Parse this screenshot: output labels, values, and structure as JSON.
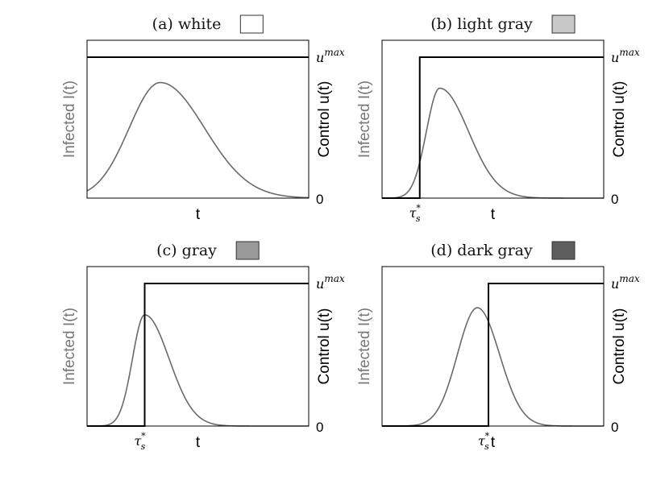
{
  "chart_data": [
    {
      "type": "line",
      "panel": "a",
      "title": "(a) white",
      "swatch_color": "#ffffff",
      "xlabel": "t",
      "ylabel_left": "Infected I(t)",
      "ylabel_right": "Control u(t)",
      "right_ticks": {
        "zero": "0",
        "max_base": "u",
        "max_sup": "max"
      },
      "switch_time_label": null,
      "switch_time": null,
      "peak_time": 0.33,
      "peak_value": 0.82,
      "rise_width": 0.14,
      "decay_width": 0.2,
      "xlim": [
        0,
        1
      ],
      "ylim": [
        0,
        1
      ]
    },
    {
      "type": "line",
      "panel": "b",
      "title": "(b) light gray",
      "swatch_color": "#c8c8c8",
      "xlabel": "t",
      "ylabel_left": "Infected I(t)",
      "ylabel_right": "Control u(t)",
      "right_ticks": {
        "zero": "0",
        "max_base": "u",
        "max_sup": "max"
      },
      "switch_time_label": {
        "base": "τ",
        "sub": "s",
        "sup": "*"
      },
      "switch_time": 0.17,
      "peak_time": 0.26,
      "peak_value": 0.78,
      "rise_width": 0.06,
      "decay_width": 0.13,
      "xlim": [
        0,
        1
      ],
      "ylim": [
        0,
        1
      ]
    },
    {
      "type": "line",
      "panel": "c",
      "title": "(c) gray",
      "swatch_color": "#9a9a9a",
      "xlabel": "t",
      "ylabel_left": "Infected I(t)",
      "ylabel_right": "Control u(t)",
      "right_ticks": {
        "zero": "0",
        "max_base": "u",
        "max_sup": "max"
      },
      "switch_time_label": {
        "base": "τ",
        "sub": "s",
        "sup": "*"
      },
      "switch_time": 0.26,
      "peak_time": 0.26,
      "peak_value": 0.78,
      "rise_width": 0.055,
      "decay_width": 0.11,
      "xlim": [
        0,
        1
      ],
      "ylim": [
        0,
        1
      ]
    },
    {
      "type": "line",
      "panel": "d",
      "title": "(d) dark gray",
      "swatch_color": "#5e5e5e",
      "xlabel": "t",
      "ylabel_left": "Infected I(t)",
      "ylabel_right": "Control u(t)",
      "right_ticks": {
        "zero": "0",
        "max_base": "u",
        "max_sup": "max"
      },
      "switch_time_label": {
        "base": "τ",
        "sub": "s",
        "sup": "*"
      },
      "switch_time": 0.48,
      "peak_time": 0.43,
      "peak_value": 0.83,
      "rise_width": 0.09,
      "decay_width": 0.1,
      "xlim": [
        0,
        1
      ],
      "ylim": [
        0,
        1
      ]
    }
  ],
  "colors": {
    "infected_curve": "#6a6a6a",
    "control_line": "#000000",
    "axes": "#000000",
    "left_label": "#777777"
  }
}
